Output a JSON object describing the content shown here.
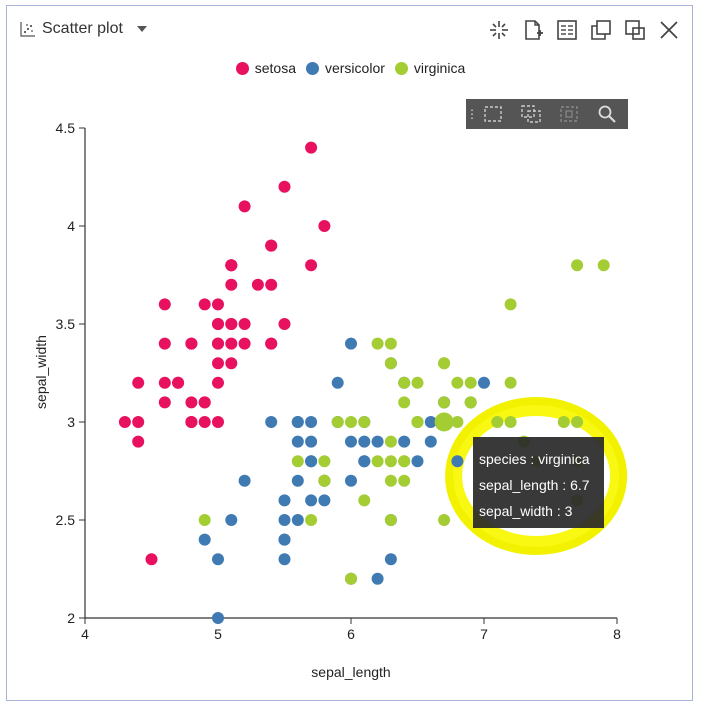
{
  "header": {
    "title": "Scatter plot",
    "tools": [
      "crosshair-icon",
      "add-file-icon",
      "table-icon",
      "duplicate-icon",
      "pop-out-icon",
      "close-icon"
    ]
  },
  "colors": {
    "setosa": "#e8115f",
    "versicolor": "#3f7ab3",
    "virginica": "#a4cd34",
    "highlight": "#f5f507"
  },
  "legend": [
    {
      "label": "setosa",
      "color": "#e8115f"
    },
    {
      "label": "versicolor",
      "color": "#3f7ab3"
    },
    {
      "label": "virginica",
      "color": "#a4cd34"
    }
  ],
  "tooltip": {
    "species": "species : virginica",
    "sepal_length": "sepal_length : 6.7",
    "sepal_width": "sepal_width : 3"
  },
  "chart_data": {
    "type": "scatter",
    "xlabel": "sepal_length",
    "ylabel": "sepal_width",
    "xlim": [
      4,
      8
    ],
    "ylim": [
      2,
      4.5
    ],
    "xticks": [
      "4",
      "5",
      "6",
      "7",
      "8"
    ],
    "yticks": [
      "2",
      "2.5",
      "3",
      "3.5",
      "4",
      "4.5"
    ],
    "legend_position": "top-center",
    "highlighted_point": {
      "series": "virginica",
      "x": 6.7,
      "y": 3.0
    },
    "series": [
      {
        "name": "setosa",
        "points": [
          [
            5.1,
            3.5
          ],
          [
            4.9,
            3.0
          ],
          [
            4.7,
            3.2
          ],
          [
            4.6,
            3.1
          ],
          [
            5.0,
            3.6
          ],
          [
            5.4,
            3.9
          ],
          [
            4.6,
            3.4
          ],
          [
            5.0,
            3.4
          ],
          [
            4.4,
            2.9
          ],
          [
            4.9,
            3.1
          ],
          [
            5.4,
            3.7
          ],
          [
            4.8,
            3.4
          ],
          [
            4.8,
            3.0
          ],
          [
            4.3,
            3.0
          ],
          [
            5.8,
            4.0
          ],
          [
            5.7,
            4.4
          ],
          [
            5.4,
            3.9
          ],
          [
            5.1,
            3.5
          ],
          [
            5.7,
            3.8
          ],
          [
            5.1,
            3.8
          ],
          [
            5.4,
            3.4
          ],
          [
            5.1,
            3.7
          ],
          [
            4.6,
            3.6
          ],
          [
            5.1,
            3.3
          ],
          [
            4.8,
            3.4
          ],
          [
            5.0,
            3.0
          ],
          [
            5.0,
            3.4
          ],
          [
            5.2,
            3.5
          ],
          [
            5.2,
            3.4
          ],
          [
            4.7,
            3.2
          ],
          [
            4.8,
            3.1
          ],
          [
            5.4,
            3.4
          ],
          [
            5.2,
            4.1
          ],
          [
            5.5,
            4.2
          ],
          [
            4.9,
            3.1
          ],
          [
            5.0,
            3.2
          ],
          [
            5.5,
            3.5
          ],
          [
            4.9,
            3.6
          ],
          [
            4.4,
            3.0
          ],
          [
            5.1,
            3.4
          ],
          [
            5.0,
            3.5
          ],
          [
            4.5,
            2.3
          ],
          [
            4.4,
            3.2
          ],
          [
            5.0,
            3.5
          ],
          [
            5.1,
            3.8
          ],
          [
            4.8,
            3.0
          ],
          [
            5.1,
            3.8
          ],
          [
            4.6,
            3.2
          ],
          [
            5.3,
            3.7
          ],
          [
            5.0,
            3.3
          ]
        ]
      },
      {
        "name": "versicolor",
        "points": [
          [
            7.0,
            3.2
          ],
          [
            6.4,
            3.2
          ],
          [
            6.9,
            3.1
          ],
          [
            5.5,
            2.3
          ],
          [
            6.5,
            2.8
          ],
          [
            5.7,
            2.8
          ],
          [
            6.3,
            3.3
          ],
          [
            4.9,
            2.4
          ],
          [
            6.6,
            2.9
          ],
          [
            5.2,
            2.7
          ],
          [
            5.0,
            2.0
          ],
          [
            5.9,
            3.0
          ],
          [
            6.0,
            2.2
          ],
          [
            6.1,
            2.9
          ],
          [
            5.6,
            2.9
          ],
          [
            6.7,
            3.1
          ],
          [
            5.6,
            3.0
          ],
          [
            5.8,
            2.7
          ],
          [
            6.2,
            2.2
          ],
          [
            5.6,
            2.5
          ],
          [
            5.9,
            3.2
          ],
          [
            6.1,
            2.8
          ],
          [
            6.3,
            2.5
          ],
          [
            6.1,
            2.8
          ],
          [
            6.4,
            2.9
          ],
          [
            6.6,
            3.0
          ],
          [
            6.8,
            2.8
          ],
          [
            6.7,
            3.0
          ],
          [
            6.0,
            2.9
          ],
          [
            5.7,
            2.6
          ],
          [
            5.5,
            2.4
          ],
          [
            5.5,
            2.4
          ],
          [
            5.8,
            2.7
          ],
          [
            6.0,
            2.7
          ],
          [
            5.4,
            3.0
          ],
          [
            6.0,
            3.4
          ],
          [
            6.7,
            3.1
          ],
          [
            6.3,
            2.3
          ],
          [
            5.6,
            3.0
          ],
          [
            5.5,
            2.5
          ],
          [
            5.5,
            2.6
          ],
          [
            6.1,
            3.0
          ],
          [
            5.8,
            2.6
          ],
          [
            5.0,
            2.3
          ],
          [
            5.6,
            2.7
          ],
          [
            5.7,
            3.0
          ],
          [
            5.7,
            2.9
          ],
          [
            6.2,
            2.9
          ],
          [
            5.1,
            2.5
          ],
          [
            5.7,
            2.8
          ]
        ]
      },
      {
        "name": "virginica",
        "points": [
          [
            6.3,
            3.3
          ],
          [
            5.8,
            2.7
          ],
          [
            7.1,
            3.0
          ],
          [
            6.3,
            2.9
          ],
          [
            6.5,
            3.0
          ],
          [
            7.6,
            3.0
          ],
          [
            4.9,
            2.5
          ],
          [
            7.3,
            2.9
          ],
          [
            6.7,
            2.5
          ],
          [
            7.2,
            3.6
          ],
          [
            6.5,
            3.2
          ],
          [
            6.4,
            2.7
          ],
          [
            6.8,
            3.0
          ],
          [
            5.7,
            2.5
          ],
          [
            5.8,
            2.8
          ],
          [
            6.4,
            3.2
          ],
          [
            6.5,
            3.0
          ],
          [
            7.7,
            3.8
          ],
          [
            7.7,
            2.6
          ],
          [
            6.0,
            2.2
          ],
          [
            6.9,
            3.2
          ],
          [
            5.6,
            2.8
          ],
          [
            7.7,
            2.8
          ],
          [
            6.3,
            2.7
          ],
          [
            6.7,
            3.3
          ],
          [
            7.2,
            3.2
          ],
          [
            6.2,
            2.8
          ],
          [
            6.1,
            3.0
          ],
          [
            6.4,
            2.8
          ],
          [
            7.2,
            3.0
          ],
          [
            7.4,
            2.8
          ],
          [
            7.9,
            3.8
          ],
          [
            6.4,
            2.8
          ],
          [
            6.3,
            2.8
          ],
          [
            6.1,
            2.6
          ],
          [
            7.7,
            3.0
          ],
          [
            6.3,
            3.4
          ],
          [
            6.4,
            3.1
          ],
          [
            6.0,
            3.0
          ],
          [
            6.9,
            3.1
          ],
          [
            6.7,
            3.1
          ],
          [
            6.9,
            3.1
          ],
          [
            5.8,
            2.7
          ],
          [
            6.8,
            3.2
          ],
          [
            6.7,
            3.3
          ],
          [
            6.7,
            3.0
          ],
          [
            6.3,
            2.5
          ],
          [
            6.5,
            3.0
          ],
          [
            6.2,
            3.4
          ],
          [
            5.9,
            3.0
          ]
        ]
      }
    ]
  }
}
